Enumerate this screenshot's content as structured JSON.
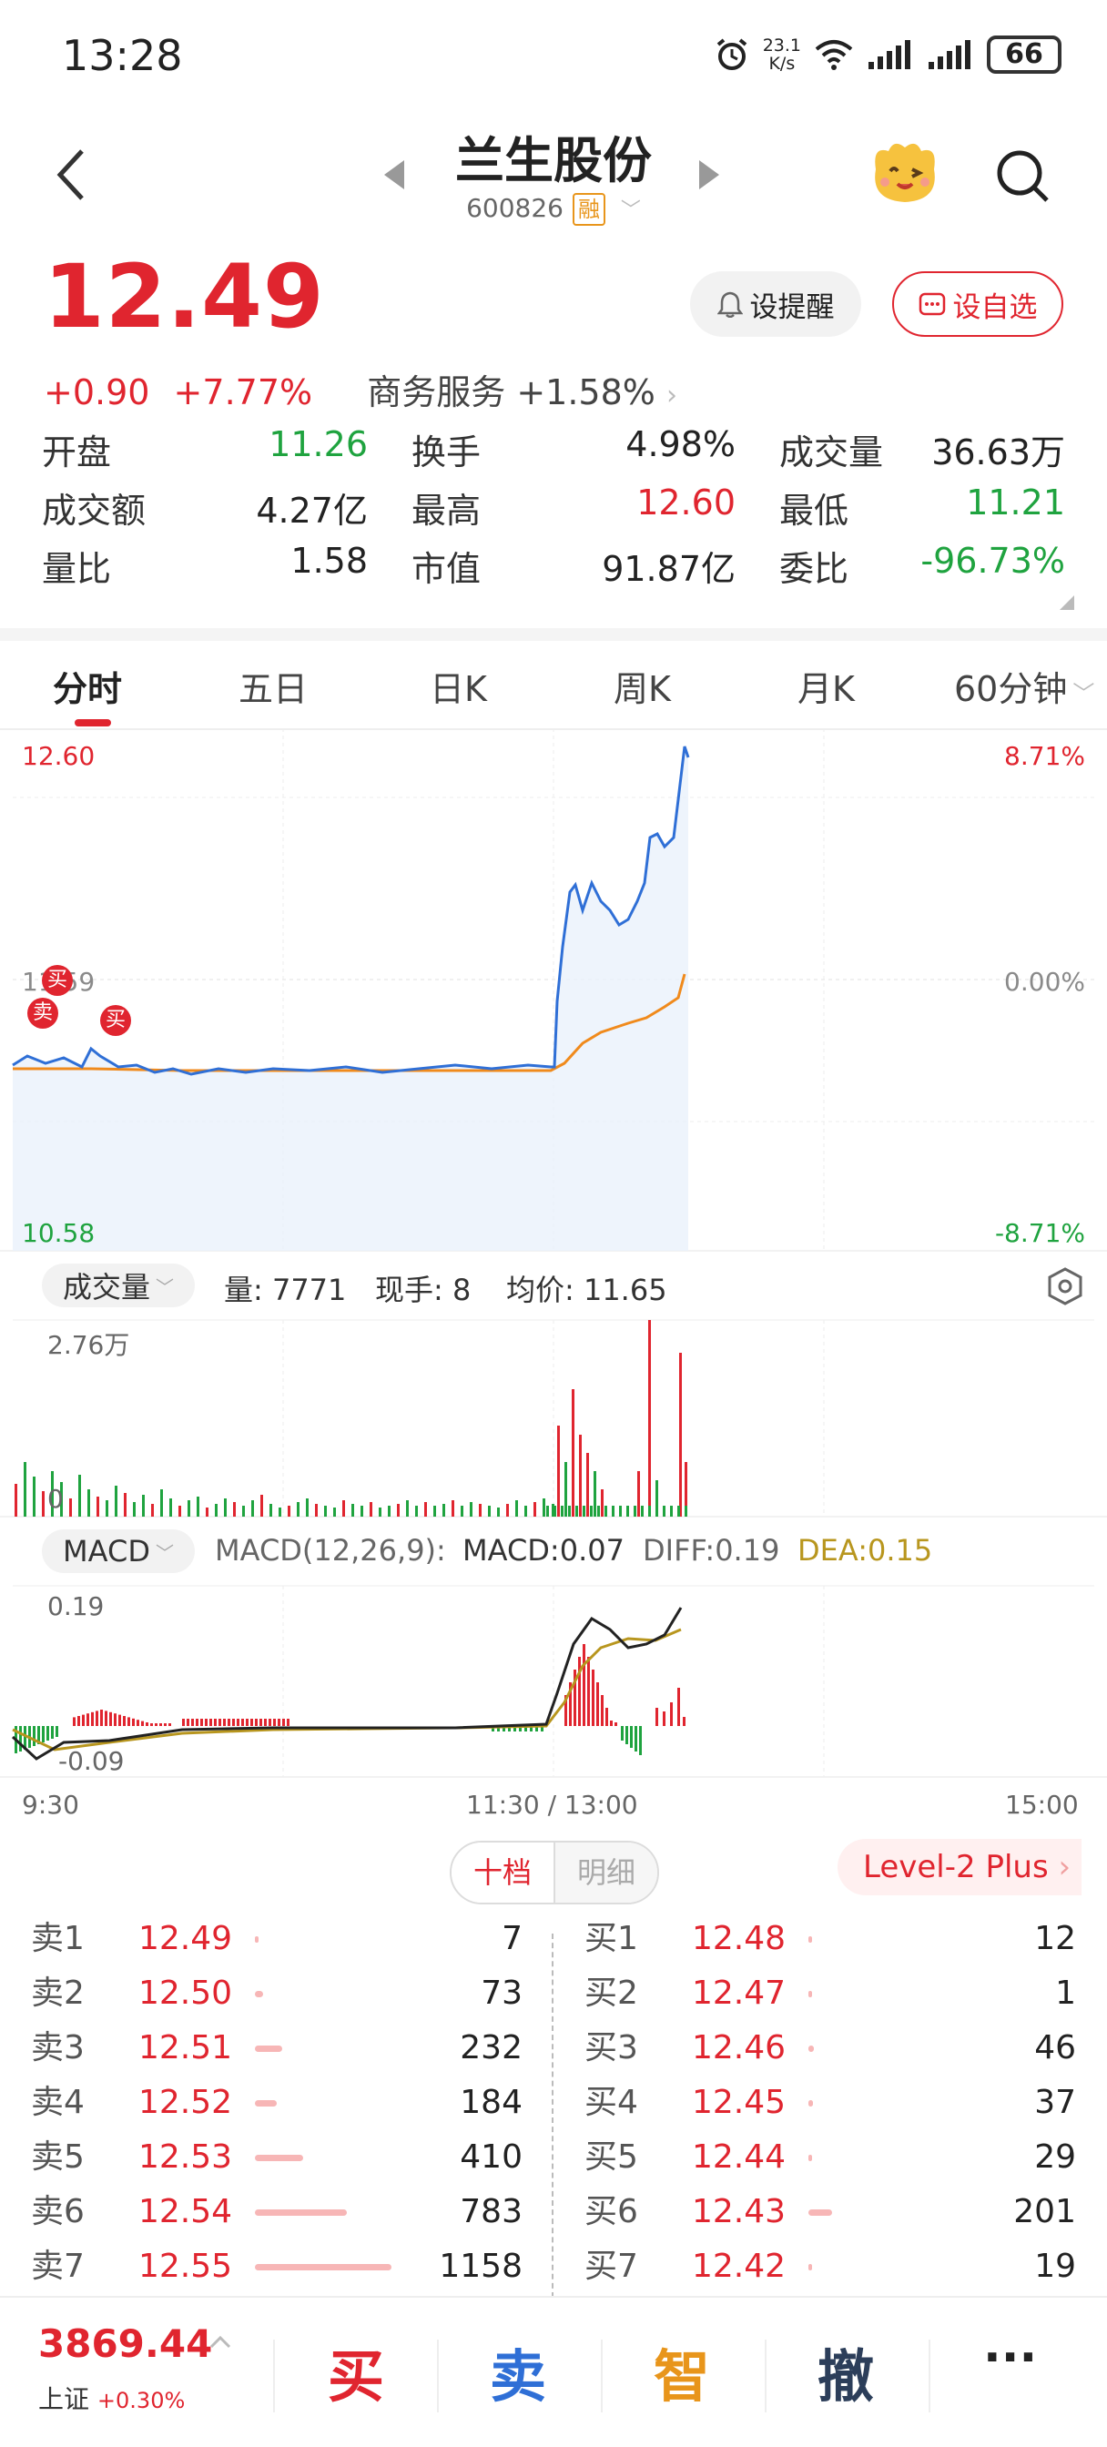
{
  "status_bar": {
    "time": "13:28",
    "net_speed_value": "23.1",
    "net_speed_unit": "K/s",
    "battery": "66",
    "icons": [
      "alarm-icon",
      "wifi-icon",
      "signal-icon",
      "signal-icon",
      "battery-icon"
    ]
  },
  "header": {
    "title": "兰生股份",
    "code": "600826",
    "badge": "融"
  },
  "quote": {
    "price": "12.49",
    "change": "+0.90",
    "change_pct": "+7.77%",
    "sector": "商务服务",
    "sector_pct": "+1.58%",
    "alert_label": "设提醒",
    "watch_label": "设自选"
  },
  "stats": [
    [
      {
        "label": "开盘",
        "value": "11.26",
        "color": "green"
      },
      {
        "label": "换手",
        "value": "4.98%",
        "color": "black"
      },
      {
        "label": "成交量",
        "value": "36.63万",
        "color": "black"
      }
    ],
    [
      {
        "label": "成交额",
        "value": "4.27亿",
        "color": "black"
      },
      {
        "label": "最高",
        "value": "12.60",
        "color": "red"
      },
      {
        "label": "最低",
        "value": "11.21",
        "color": "green"
      }
    ],
    [
      {
        "label": "量比",
        "value": "1.58",
        "color": "black"
      },
      {
        "label": "市值",
        "value": "91.87亿",
        "color": "black"
      },
      {
        "label": "委比",
        "value": "-96.73%",
        "color": "green"
      }
    ]
  ],
  "tabs": [
    "分时",
    "五日",
    "日K",
    "周K",
    "月K",
    "60分钟"
  ],
  "intraday": {
    "y_high": "12.60",
    "y_mid": "11.59",
    "y_low": "10.58",
    "pct_high": "8.71%",
    "pct_mid": "0.00%",
    "pct_low": "-8.71%",
    "markers": [
      "买",
      "卖",
      "买"
    ],
    "x_labels": [
      "9:30",
      "11:30 / 13:00",
      "15:00"
    ]
  },
  "volume_panel": {
    "indicator": "成交量",
    "vol_text": "量: 7771",
    "now_text": "现手: 8",
    "avg_text": "均价: 11.65",
    "max_label": "2.76万",
    "zero_label": "0"
  },
  "macd_panel": {
    "indicator": "MACD",
    "params": "MACD(12,26,9):",
    "macd": "MACD:0.07",
    "diff": "DIFF:0.19",
    "dea": "DEA:0.15",
    "top_label": "0.19",
    "bottom_label": "-0.09"
  },
  "orderbook": {
    "seg_on": "十档",
    "seg_off": "明细",
    "level2": "Level-2 Plus",
    "sells": [
      {
        "label": "卖1",
        "price": "12.49",
        "vol": "7",
        "bar": 0.006
      },
      {
        "label": "卖2",
        "price": "12.50",
        "vol": "73",
        "bar": 0.063
      },
      {
        "label": "卖3",
        "price": "12.51",
        "vol": "232",
        "bar": 0.2
      },
      {
        "label": "卖4",
        "price": "12.52",
        "vol": "184",
        "bar": 0.159
      },
      {
        "label": "卖5",
        "price": "12.53",
        "vol": "410",
        "bar": 0.354
      },
      {
        "label": "卖6",
        "price": "12.54",
        "vol": "783",
        "bar": 0.676
      },
      {
        "label": "卖7",
        "price": "12.55",
        "vol": "1158",
        "bar": 1.0
      }
    ],
    "buys": [
      {
        "label": "买1",
        "price": "12.48",
        "vol": "12",
        "bar": 0.01
      },
      {
        "label": "买2",
        "price": "12.47",
        "vol": "1",
        "bar": 0.001
      },
      {
        "label": "买3",
        "price": "12.46",
        "vol": "46",
        "bar": 0.04
      },
      {
        "label": "买4",
        "price": "12.45",
        "vol": "37",
        "bar": 0.032
      },
      {
        "label": "买5",
        "price": "12.44",
        "vol": "29",
        "bar": 0.025
      },
      {
        "label": "买6",
        "price": "12.43",
        "vol": "201",
        "bar": 0.174
      },
      {
        "label": "买7",
        "price": "12.42",
        "vol": "19",
        "bar": 0.016
      }
    ]
  },
  "bottom": {
    "index_value": "3869.44",
    "index_name": "上证",
    "index_pct": "+0.30%",
    "buy": "买",
    "sell": "卖",
    "smart": "智",
    "cancel": "撤",
    "more": "···"
  },
  "colors": {
    "up": "#e0252f",
    "down": "#1fa33f",
    "price_line": "#2f6fd6",
    "avg_line": "#f08a1c",
    "dea_line": "#b8961e"
  }
}
